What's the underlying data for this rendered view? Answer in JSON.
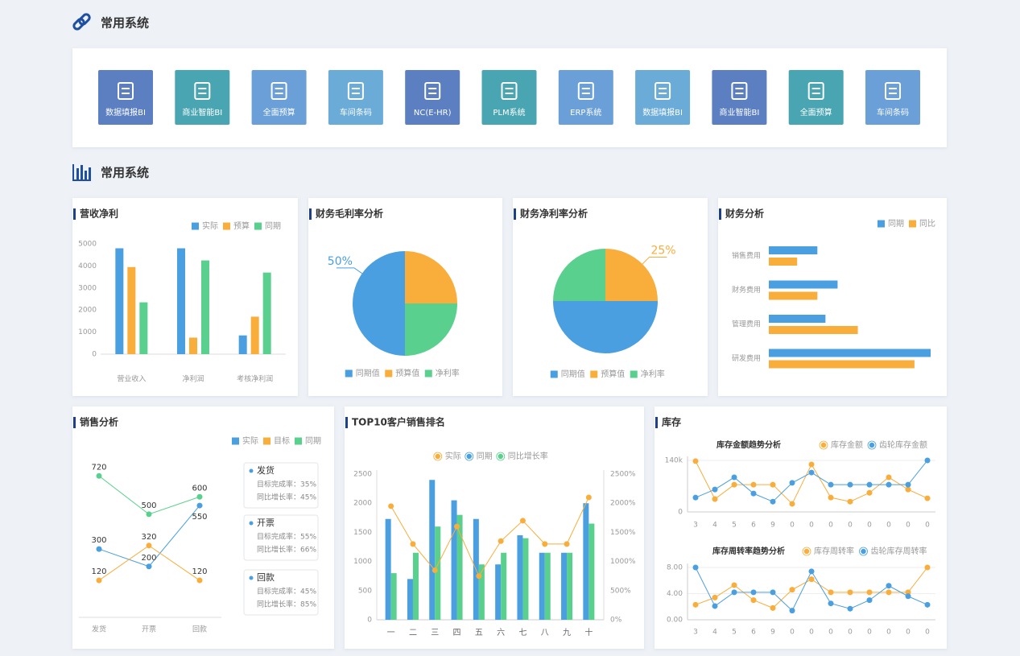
{
  "header": {
    "title": "常用系统"
  },
  "systems": [
    {
      "label": "数据填报BI",
      "color": "#5b7fc0"
    },
    {
      "label": "商业智能BI",
      "color": "#4aa5b2"
    },
    {
      "label": "全面预算",
      "color": "#6a9fd8"
    },
    {
      "label": "车间条码",
      "color": "#6aabd8"
    },
    {
      "label": "NC(E-HR)",
      "color": "#5b7fc0"
    },
    {
      "label": "PLM系统",
      "color": "#4aa5b2"
    },
    {
      "label": "ERP系统",
      "color": "#6a9fd8"
    },
    {
      "label": "数据填报BI",
      "color": "#6aabd8"
    },
    {
      "label": "商业智能BI",
      "color": "#5b7fc0"
    },
    {
      "label": "全面预算",
      "color": "#4aa5b2"
    },
    {
      "label": "车间条码",
      "color": "#6a9fd8"
    }
  ],
  "section": {
    "title": "常用系统"
  },
  "chart_data": [
    {
      "type": "bar",
      "title": "营收净利",
      "categories": [
        "营业收入",
        "净利润",
        "考核净利润"
      ],
      "series": [
        {
          "name": "实际",
          "color": "#4a9fe0",
          "values": [
            4800,
            4800,
            850
          ]
        },
        {
          "name": "预算",
          "color": "#f9ad3b",
          "values": [
            3950,
            750,
            1700
          ]
        },
        {
          "name": "同期",
          "color": "#5ad08e",
          "values": [
            2350,
            4250,
            3700
          ]
        }
      ],
      "ylim": [
        0,
        5000
      ],
      "yticks": [
        0,
        1000,
        2000,
        3000,
        4000,
        5000
      ]
    },
    {
      "type": "pie",
      "title": "财务毛利率分析",
      "categories": [
        "同期值",
        "预算值",
        "净利率"
      ],
      "values": [
        50,
        25,
        25
      ],
      "value_labels": [
        "50%",
        null,
        null
      ],
      "colors": [
        "#4a9fe0",
        "#f9ad3b",
        "#5ad08e"
      ]
    },
    {
      "type": "pie",
      "title": "财务净利率分析",
      "categories": [
        "同期值",
        "预算值",
        "净利率"
      ],
      "values": [
        50,
        25,
        25
      ],
      "value_labels": [
        null,
        "25%",
        null
      ],
      "colors": [
        "#4a9fe0",
        "#f9ad3b",
        "#5ad08e"
      ]
    },
    {
      "type": "barh",
      "title": "财务分析",
      "categories": [
        "销售费用",
        "财务费用",
        "管理费用",
        "研发费用"
      ],
      "series": [
        {
          "name": "同期",
          "color": "#4a9fe0",
          "values": [
            60,
            85,
            70,
            200
          ]
        },
        {
          "name": "同比",
          "color": "#f9ad3b",
          "values": [
            35,
            60,
            110,
            180
          ]
        }
      ],
      "xlim": [
        0,
        200
      ]
    },
    {
      "type": "line",
      "title": "销售分析",
      "categories": [
        "发货",
        "开票",
        "回款"
      ],
      "series": [
        {
          "name": "实际",
          "color": "#4a9fe0",
          "values": [
            300,
            200,
            550
          ]
        },
        {
          "name": "目标",
          "color": "#f9ad3b",
          "values": [
            120,
            320,
            120
          ]
        },
        {
          "name": "同期",
          "color": "#5ad08e",
          "values": [
            720,
            500,
            600
          ]
        }
      ],
      "ylim": [
        0,
        800
      ],
      "cards": [
        {
          "title": "发货",
          "lines": [
            "目标完成率：35%",
            "同比增长率：45%"
          ]
        },
        {
          "title": "开票",
          "lines": [
            "目标完成率：55%",
            "同比增长率：66%"
          ]
        },
        {
          "title": "回款",
          "lines": [
            "目标完成率：45%",
            "同比增长率：85%"
          ]
        }
      ]
    },
    {
      "type": "combo",
      "title": "TOP10客户销售排名",
      "categories": [
        "一",
        "二",
        "三",
        "四",
        "五",
        "六",
        "七",
        "八",
        "九",
        "十"
      ],
      "series": [
        {
          "name": "实际",
          "color": "#f9ad3b",
          "type": "line",
          "axis": "y2",
          "values": [
            1950,
            1300,
            850,
            1600,
            750,
            1350,
            1700,
            1300,
            1300,
            2100
          ]
        },
        {
          "name": "同期",
          "color": "#4a9fe0",
          "type": "bar",
          "values": [
            1730,
            700,
            2400,
            2050,
            1730,
            950,
            1450,
            1150,
            1150,
            2000
          ]
        },
        {
          "name": "同比增长率",
          "color": "#5ad08e",
          "type": "bar",
          "values": [
            800,
            1150,
            1600,
            1800,
            950,
            1150,
            1400,
            1150,
            1150,
            1650
          ]
        }
      ],
      "ylim": [
        0,
        2500
      ],
      "yticks": [
        0,
        500,
        1000,
        1500,
        2000,
        2500
      ],
      "y2lim": [
        0,
        2500
      ],
      "y2ticks": [
        {
          "value": 0,
          "label": "0%"
        },
        {
          "value": 500,
          "label": "500%"
        },
        {
          "value": 1000,
          "label": "1000%"
        },
        {
          "value": 1500,
          "label": "1500%"
        },
        {
          "value": 2000,
          "label": "2000%"
        },
        {
          "value": 2500,
          "label": "2500%"
        }
      ]
    },
    {
      "type": "line",
      "panel_title": "库存",
      "title": "库存金额趋势分析",
      "categories": [
        "3",
        "4",
        "5",
        "6",
        "9",
        "0",
        "0",
        "0",
        "0",
        "0",
        "0",
        "0",
        "0"
      ],
      "series": [
        {
          "name": "库存金额",
          "color": "#f9ad3b",
          "values": [
            138000,
            35000,
            74000,
            74000,
            74000,
            22000,
            129000,
            39000,
            28000,
            52000,
            94000,
            61000,
            37000
          ]
        },
        {
          "name": "齿轮库存金额",
          "color": "#4a9fe0",
          "values": [
            39000,
            61000,
            94000,
            50000,
            28000,
            79000,
            107000,
            74000,
            74000,
            74000,
            74000,
            74000,
            140000
          ]
        }
      ],
      "ylim": [
        0,
        140000
      ],
      "yticks": [
        0,
        {
          "value": 140000,
          "label": "140k"
        }
      ]
    },
    {
      "type": "line",
      "title": "库存周转率趋势分析",
      "categories": [
        "3",
        "4",
        "5",
        "6",
        "9",
        "0",
        "0",
        "0",
        "0",
        "0",
        "0",
        "0",
        "0"
      ],
      "series": [
        {
          "name": "库存周转率",
          "color": "#f9ad3b",
          "values": [
            2.3,
            3.4,
            5.3,
            3.0,
            1.8,
            4.6,
            6.2,
            4.2,
            4.2,
            4.2,
            4.2,
            4.2,
            8.0
          ]
        },
        {
          "name": "齿轮库存周转率",
          "color": "#4a9fe0",
          "values": [
            8.0,
            2.1,
            4.2,
            4.2,
            4.2,
            1.4,
            7.4,
            2.5,
            1.7,
            3.0,
            5.2,
            3.6,
            2.3
          ]
        }
      ],
      "ylim": [
        0,
        8
      ],
      "yticks": [
        {
          "value": 0,
          "label": "0.00"
        },
        {
          "value": 4,
          "label": "4.00"
        },
        {
          "value": 8,
          "label": "8.00"
        }
      ]
    }
  ]
}
